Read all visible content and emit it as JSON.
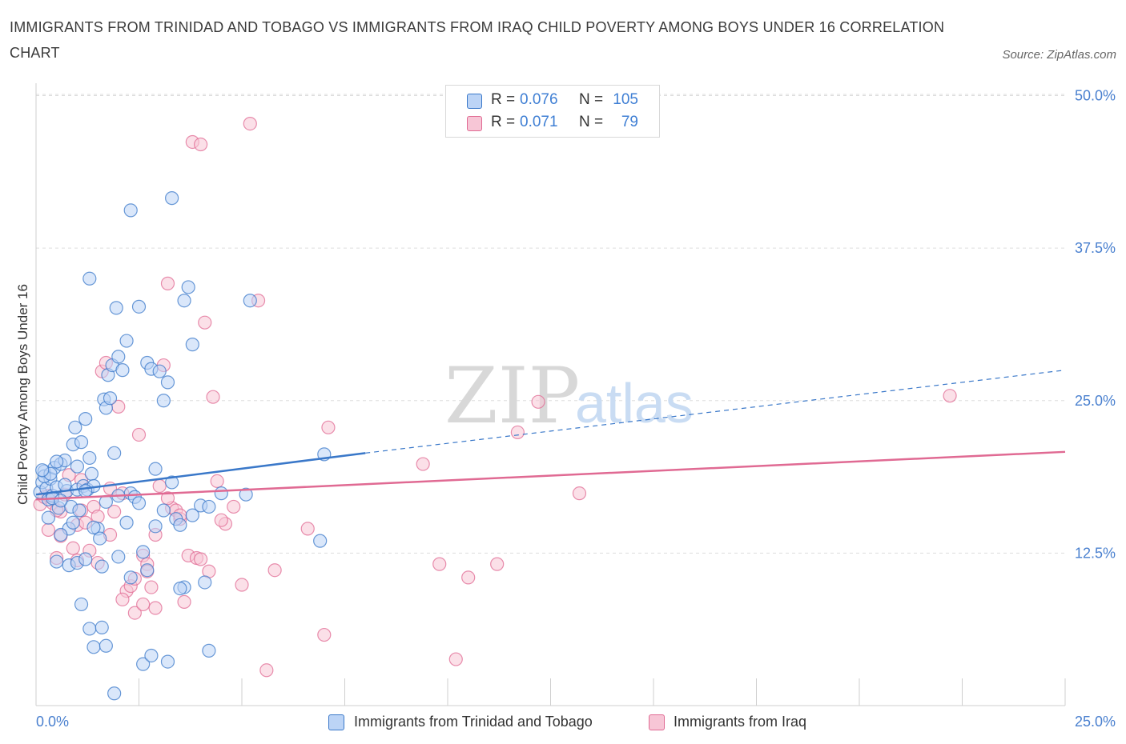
{
  "title": "IMMIGRANTS FROM TRINIDAD AND TOBAGO VS IMMIGRANTS FROM IRAQ CHILD POVERTY AMONG BOYS UNDER 16 CORRELATION CHART",
  "source": "Source: ZipAtlas.com",
  "watermark": {
    "zip": "ZIP",
    "atlas": "atlas"
  },
  "colors": {
    "blue": "#3a78c9",
    "blue_fill": "#bcd4f6",
    "pink": "#e06a93",
    "pink_fill": "#f7c6d6",
    "axis_text": "#4a80cf",
    "grid": "#dddddd"
  },
  "legend_top": [
    {
      "series": "trinidad",
      "r_label": "R =",
      "r_value": "0.076",
      "n_label": "N =",
      "n_value": "105"
    },
    {
      "series": "iraq",
      "r_label": "R =",
      "r_value": "0.071",
      "n_label": "N =",
      "n_value": "79"
    }
  ],
  "legend_bottom": [
    {
      "series": "trinidad",
      "label": "Immigrants from Trinidad and Tobago"
    },
    {
      "series": "iraq",
      "label": "Immigrants from Iraq"
    }
  ],
  "chart_data": {
    "type": "scatter",
    "title": "IMMIGRANTS FROM TRINIDAD AND TOBAGO VS IMMIGRANTS FROM IRAQ CHILD POVERTY AMONG BOYS UNDER 16 CORRELATION CHART",
    "xlabel": "",
    "ylabel": "Child Poverty Among Boys Under 16",
    "xlim": [
      0,
      25
    ],
    "ylim": [
      0,
      50
    ],
    "x_tick_labels": [
      {
        "value": 0,
        "label": "0.0%"
      },
      {
        "value": 25,
        "label": "25.0%"
      }
    ],
    "y_tick_labels": [
      {
        "value": 12.5,
        "label": "12.5%"
      },
      {
        "value": 25,
        "label": "25.0%"
      },
      {
        "value": 37.5,
        "label": "37.5%"
      },
      {
        "value": 50,
        "label": "50.0%"
      }
    ],
    "grid": true,
    "legend_position": "top-center",
    "series": [
      {
        "name": "Immigrants from Trinidad and Tobago",
        "key": "trinidad",
        "r": 0.076,
        "n": 105,
        "trend": {
          "x0": 0,
          "y0": 17.3,
          "x1": 8.0,
          "y1": 20.7,
          "dashed_to_x": 25,
          "dashed_to_y": 27.5
        },
        "points": [
          [
            0.1,
            17.5
          ],
          [
            0.15,
            18.3
          ],
          [
            0.2,
            19.2
          ],
          [
            0.25,
            17.8
          ],
          [
            0.3,
            16.9
          ],
          [
            0.35,
            18.6
          ],
          [
            0.4,
            17.2
          ],
          [
            0.45,
            19.5
          ],
          [
            0.5,
            17.9
          ],
          [
            0.55,
            16.2
          ],
          [
            0.6,
            19.8
          ],
          [
            0.7,
            20.1
          ],
          [
            0.75,
            17.6
          ],
          [
            0.8,
            14.5
          ],
          [
            0.85,
            16.3
          ],
          [
            0.9,
            21.4
          ],
          [
            0.95,
            22.8
          ],
          [
            1.0,
            17.7
          ],
          [
            1.05,
            16.0
          ],
          [
            1.1,
            21.6
          ],
          [
            1.15,
            18.0
          ],
          [
            1.2,
            23.5
          ],
          [
            1.25,
            17.7
          ],
          [
            1.3,
            20.3
          ],
          [
            1.35,
            19.0
          ],
          [
            1.4,
            18.0
          ],
          [
            1.5,
            14.5
          ],
          [
            1.55,
            13.7
          ],
          [
            1.6,
            11.4
          ],
          [
            1.65,
            25.1
          ],
          [
            1.7,
            24.4
          ],
          [
            1.75,
            27.1
          ],
          [
            1.8,
            25.2
          ],
          [
            1.85,
            27.9
          ],
          [
            1.9,
            20.7
          ],
          [
            1.95,
            32.6
          ],
          [
            2.0,
            28.6
          ],
          [
            2.1,
            27.5
          ],
          [
            2.2,
            29.9
          ],
          [
            2.3,
            17.4
          ],
          [
            2.4,
            17.1
          ],
          [
            2.5,
            32.7
          ],
          [
            2.6,
            12.6
          ],
          [
            2.7,
            28.1
          ],
          [
            2.8,
            27.6
          ],
          [
            2.9,
            19.4
          ],
          [
            3.0,
            27.4
          ],
          [
            3.1,
            25.0
          ],
          [
            3.2,
            26.5
          ],
          [
            3.3,
            18.3
          ],
          [
            3.4,
            15.3
          ],
          [
            3.5,
            14.8
          ],
          [
            3.6,
            33.2
          ],
          [
            3.7,
            34.3
          ],
          [
            3.8,
            29.6
          ],
          [
            4.0,
            16.4
          ],
          [
            4.2,
            16.3
          ],
          [
            4.5,
            17.4
          ],
          [
            5.1,
            17.3
          ],
          [
            5.2,
            33.2
          ],
          [
            6.9,
            13.5
          ],
          [
            7.0,
            20.6
          ],
          [
            0.3,
            15.4
          ],
          [
            0.5,
            11.8
          ],
          [
            0.6,
            14.0
          ],
          [
            0.8,
            11.5
          ],
          [
            0.9,
            15.0
          ],
          [
            1.0,
            11.7
          ],
          [
            1.1,
            8.3
          ],
          [
            1.4,
            14.6
          ],
          [
            1.3,
            6.3
          ],
          [
            1.4,
            4.8
          ],
          [
            1.6,
            6.4
          ],
          [
            1.7,
            4.9
          ],
          [
            1.9,
            1.0
          ],
          [
            2.0,
            12.2
          ],
          [
            2.3,
            10.5
          ],
          [
            2.6,
            3.4
          ],
          [
            2.8,
            4.1
          ],
          [
            3.2,
            3.6
          ],
          [
            3.6,
            9.7
          ],
          [
            4.1,
            10.1
          ],
          [
            4.2,
            4.5
          ],
          [
            2.3,
            40.6
          ],
          [
            3.3,
            41.6
          ],
          [
            1.3,
            35.0
          ],
          [
            2.7,
            11.1
          ],
          [
            2.5,
            16.6
          ],
          [
            2.9,
            14.7
          ],
          [
            1.2,
            17.6
          ],
          [
            0.4,
            17.0
          ],
          [
            0.7,
            18.1
          ],
          [
            0.2,
            18.8
          ],
          [
            0.35,
            19.0
          ],
          [
            0.6,
            16.8
          ],
          [
            1.0,
            19.6
          ],
          [
            1.7,
            16.7
          ],
          [
            2.2,
            15.0
          ],
          [
            3.1,
            16.0
          ],
          [
            3.8,
            15.6
          ],
          [
            0.15,
            19.3
          ],
          [
            0.5,
            20.0
          ],
          [
            1.2,
            12.0
          ],
          [
            2.0,
            17.2
          ],
          [
            3.5,
            9.6
          ]
        ]
      },
      {
        "name": "Immigrants from Iraq",
        "key": "iraq",
        "r": 0.071,
        "n": 79,
        "trend": {
          "x0": 0,
          "y0": 16.9,
          "x1": 25,
          "y1": 20.8
        },
        "points": [
          [
            0.1,
            16.5
          ],
          [
            0.2,
            17.1
          ],
          [
            0.3,
            14.4
          ],
          [
            0.4,
            16.6
          ],
          [
            0.5,
            12.1
          ],
          [
            0.6,
            15.9
          ],
          [
            0.7,
            17.3
          ],
          [
            0.8,
            18.9
          ],
          [
            0.9,
            12.9
          ],
          [
            1.0,
            14.8
          ],
          [
            1.1,
            16.0
          ],
          [
            1.2,
            15.0
          ],
          [
            1.3,
            12.7
          ],
          [
            1.4,
            16.3
          ],
          [
            1.5,
            15.5
          ],
          [
            1.6,
            27.4
          ],
          [
            1.7,
            28.1
          ],
          [
            1.8,
            14.0
          ],
          [
            1.9,
            15.9
          ],
          [
            2.0,
            24.5
          ],
          [
            2.1,
            17.4
          ],
          [
            2.2,
            9.4
          ],
          [
            2.3,
            9.8
          ],
          [
            2.4,
            7.6
          ],
          [
            2.5,
            22.2
          ],
          [
            2.6,
            12.3
          ],
          [
            2.7,
            11.6
          ],
          [
            2.8,
            9.7
          ],
          [
            2.9,
            8.0
          ],
          [
            3.0,
            18.0
          ],
          [
            3.1,
            27.9
          ],
          [
            3.2,
            34.6
          ],
          [
            3.3,
            16.2
          ],
          [
            3.4,
            16.0
          ],
          [
            3.5,
            15.3
          ],
          [
            3.6,
            8.5
          ],
          [
            3.7,
            12.3
          ],
          [
            3.8,
            46.2
          ],
          [
            3.9,
            12.1
          ],
          [
            4.0,
            46.0
          ],
          [
            4.1,
            31.4
          ],
          [
            4.2,
            11.0
          ],
          [
            4.3,
            25.3
          ],
          [
            4.4,
            18.4
          ],
          [
            4.6,
            14.9
          ],
          [
            4.8,
            16.3
          ],
          [
            5.0,
            9.9
          ],
          [
            5.2,
            47.7
          ],
          [
            5.4,
            33.2
          ],
          [
            5.6,
            2.9
          ],
          [
            5.8,
            11.1
          ],
          [
            6.6,
            14.5
          ],
          [
            7.0,
            5.8
          ],
          [
            7.1,
            22.8
          ],
          [
            9.4,
            19.8
          ],
          [
            9.8,
            11.6
          ],
          [
            10.2,
            3.8
          ],
          [
            10.5,
            10.5
          ],
          [
            11.2,
            11.6
          ],
          [
            11.7,
            22.4
          ],
          [
            12.2,
            24.9
          ],
          [
            13.2,
            17.4
          ],
          [
            22.2,
            25.4
          ],
          [
            0.3,
            17.2
          ],
          [
            0.6,
            13.9
          ],
          [
            1.0,
            11.9
          ],
          [
            1.5,
            11.7
          ],
          [
            2.1,
            8.7
          ],
          [
            2.4,
            10.4
          ],
          [
            2.6,
            8.3
          ],
          [
            2.7,
            11.0
          ],
          [
            3.2,
            17.0
          ],
          [
            3.5,
            15.6
          ],
          [
            4.0,
            12.0
          ],
          [
            4.5,
            15.2
          ],
          [
            1.1,
            18.5
          ],
          [
            0.5,
            16.0
          ],
          [
            2.9,
            14.0
          ],
          [
            1.8,
            17.8
          ]
        ]
      }
    ]
  }
}
